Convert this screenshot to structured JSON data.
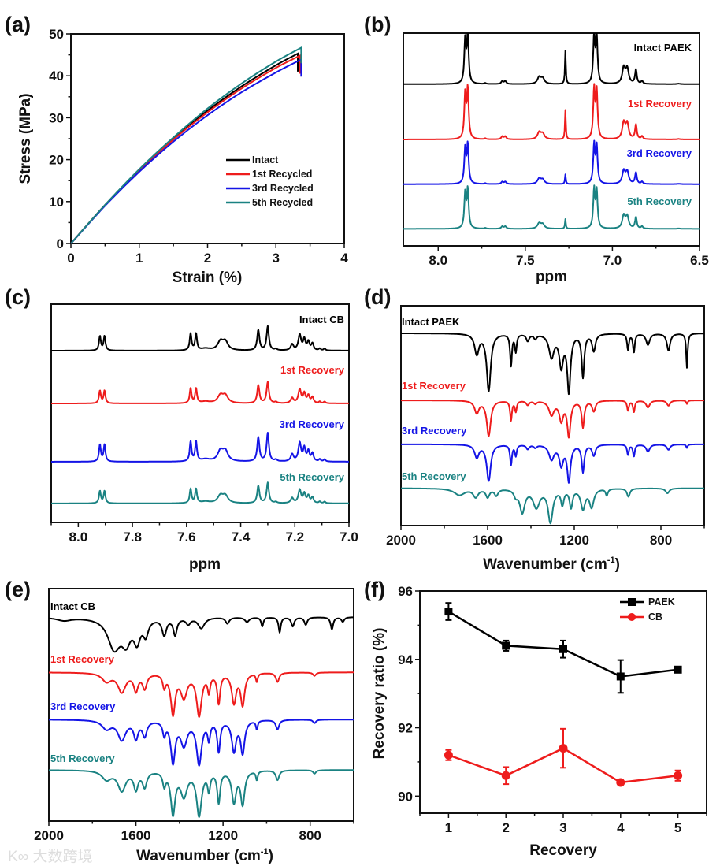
{
  "colors": {
    "black": "#000000",
    "red": "#ee1c1c",
    "blue": "#1414e6",
    "teal": "#1a8282"
  },
  "watermark": "大数跨境",
  "chart_data": [
    {
      "panel": "(a)",
      "type": "line",
      "xlabel": "Strain (%)",
      "ylabel": "Stress (MPa)",
      "xlim": [
        0,
        4
      ],
      "ylim": [
        0,
        50
      ],
      "xticks": [
        "0",
        "1",
        "2",
        "3",
        "4"
      ],
      "xtick_values": [
        0,
        1,
        2,
        3,
        4
      ],
      "yticks": [
        "0",
        "10",
        "20",
        "30",
        "40",
        "50"
      ],
      "ytick_values": [
        0,
        10,
        20,
        30,
        40,
        50
      ],
      "legend_position": "bottom-right",
      "series": [
        {
          "name": "Intact",
          "color": "#000000",
          "x": [
            0,
            0.5,
            1,
            1.5,
            2,
            2.5,
            3,
            3.32,
            3.32
          ],
          "y": [
            0,
            9.2,
            17.5,
            25.0,
            31.7,
            37.5,
            42.5,
            45.3,
            41.0
          ]
        },
        {
          "name": "1st Recycled",
          "color": "#ee1c1c",
          "x": [
            0,
            0.5,
            1,
            1.5,
            2,
            2.5,
            3,
            3.35,
            3.35
          ],
          "y": [
            0,
            9.1,
            17.4,
            24.8,
            31.3,
            37.0,
            41.9,
            44.8,
            40.5
          ]
        },
        {
          "name": "3rd Recycled",
          "color": "#1414e6",
          "x": [
            0,
            0.5,
            1,
            1.5,
            2,
            2.5,
            3,
            3.37,
            3.37
          ],
          "y": [
            0,
            9.0,
            17.1,
            24.3,
            30.6,
            36.1,
            40.8,
            43.9,
            39.8
          ]
        },
        {
          "name": "5th Recycled",
          "color": "#1a8282",
          "x": [
            0,
            0.5,
            1,
            1.5,
            2,
            2.5,
            3,
            3.37,
            3.37
          ],
          "y": [
            0,
            9.2,
            17.7,
            25.3,
            32.2,
            38.2,
            43.4,
            46.7,
            43.0
          ]
        }
      ]
    },
    {
      "panel": "(b)",
      "type": "line",
      "subtype": "1H NMR stacked",
      "xlabel": "ppm",
      "ylabel": "",
      "xlim": [
        8.2,
        6.5
      ],
      "ylim": [
        0,
        100
      ],
      "xticks": [
        "8.0",
        "7.5",
        "7.0",
        "6.5"
      ],
      "xtick_values": [
        8.0,
        7.5,
        7.0,
        6.5
      ],
      "peaks": [
        [
          7.845,
          0.9,
          0.006
        ],
        [
          7.83,
          1.0,
          0.006
        ],
        [
          7.73,
          0.02,
          0.006
        ],
        [
          7.632,
          0.06,
          0.007
        ],
        [
          7.615,
          0.06,
          0.007
        ],
        [
          7.42,
          0.14,
          0.012
        ],
        [
          7.4,
          0.11,
          0.012
        ],
        [
          7.27,
          0.7,
          0.003
        ],
        [
          7.105,
          1.0,
          0.006
        ],
        [
          7.09,
          0.95,
          0.006
        ],
        [
          6.935,
          0.33,
          0.01
        ],
        [
          6.915,
          0.31,
          0.01
        ],
        [
          6.865,
          0.3,
          0.006
        ],
        [
          6.83,
          0.06,
          0.006
        ],
        [
          6.62,
          0.01,
          0.01
        ]
      ],
      "series": [
        {
          "name": "Intact PAEK",
          "color": "#000000",
          "offset": 76,
          "scale": 22.5,
          "peak_overrides": {}
        },
        {
          "name": "1st Recovery",
          "color": "#ee1c1c",
          "offset": 50,
          "scale": 23,
          "peak_overrides": {
            "7.27": 0.6
          }
        },
        {
          "name": "3rd Recovery",
          "color": "#1414e6",
          "offset": 29,
          "scale": 18,
          "peak_overrides": {
            "7.27": 0.25
          }
        },
        {
          "name": "5th Recovery",
          "color": "#1a8282",
          "offset": 8,
          "scale": 18,
          "peak_overrides": {
            "7.27": 0.25
          }
        }
      ]
    },
    {
      "panel": "(c)",
      "type": "line",
      "subtype": "1H NMR stacked",
      "xlabel": "ppm",
      "ylabel": "",
      "xlim": [
        8.1,
        7.0
      ],
      "ylim": [
        0,
        100
      ],
      "xticks": [
        "8.0",
        "7.8",
        "7.6",
        "7.4",
        "7.2",
        "7.0"
      ],
      "xtick_values": [
        8.0,
        7.8,
        7.6,
        7.4,
        7.2,
        7.0
      ],
      "peaks": [
        [
          7.92,
          0.6,
          0.004
        ],
        [
          7.903,
          0.6,
          0.004
        ],
        [
          7.585,
          0.7,
          0.004
        ],
        [
          7.565,
          0.7,
          0.004
        ],
        [
          7.53,
          0.08,
          0.02
        ],
        [
          7.475,
          0.35,
          0.012
        ],
        [
          7.457,
          0.35,
          0.012
        ],
        [
          7.335,
          0.85,
          0.005
        ],
        [
          7.3,
          1.0,
          0.005
        ],
        [
          7.27,
          0.06,
          0.005
        ],
        [
          7.21,
          0.25,
          0.006
        ],
        [
          7.182,
          0.65,
          0.006
        ],
        [
          7.165,
          0.45,
          0.005
        ],
        [
          7.15,
          0.35,
          0.005
        ],
        [
          7.135,
          0.28,
          0.005
        ],
        [
          7.108,
          0.08,
          0.004
        ],
        [
          7.09,
          0.08,
          0.004
        ]
      ],
      "series": [
        {
          "name": "Intact CB",
          "color": "#000000",
          "offset": 78.7,
          "scale": 11,
          "peak_overrides": {}
        },
        {
          "name": "1st Recovery",
          "color": "#ee1c1c",
          "offset": 54.5,
          "scale": 9.7,
          "peak_overrides": {}
        },
        {
          "name": "3rd Recovery",
          "color": "#1414e6",
          "offset": 27.8,
          "scale": 13,
          "peak_overrides": {}
        },
        {
          "name": "5th Recovery",
          "color": "#1a8282",
          "offset": 8.7,
          "scale": 9.4,
          "peak_overrides": {}
        }
      ]
    },
    {
      "panel": "(d)",
      "type": "line",
      "subtype": "FTIR transmittance stacked",
      "xlabel": "Wavenumber (cm",
      "xlabel_sup": "-1",
      "xlabel_end": ")",
      "ylabel": "",
      "xlim": [
        2000,
        600
      ],
      "ylim": [
        0,
        100
      ],
      "xticks": [
        "2000",
        "1600",
        "1200",
        "800"
      ],
      "xtick_values": [
        2000,
        1600,
        1200,
        800
      ],
      "peaks": [
        [
          1650,
          0.35,
          12
        ],
        [
          1595,
          1.0,
          11
        ],
        [
          1492,
          0.55,
          5
        ],
        [
          1470,
          0.3,
          5
        ],
        [
          1415,
          0.12,
          8
        ],
        [
          1380,
          0.08,
          8
        ],
        [
          1305,
          0.4,
          14
        ],
        [
          1260,
          0.55,
          11
        ],
        [
          1225,
          1.0,
          9
        ],
        [
          1160,
          0.75,
          7
        ],
        [
          1110,
          0.3,
          9
        ],
        [
          952,
          0.28,
          5
        ],
        [
          925,
          0.33,
          5
        ],
        [
          860,
          0.2,
          10
        ],
        [
          765,
          0.3,
          9
        ],
        [
          680,
          0.6,
          4
        ]
      ],
      "series": [
        {
          "name": "Intact PAEK",
          "color": "#000000",
          "offset": 87.5,
          "scale": 26,
          "peak_overrides": {}
        },
        {
          "name": "1st Recovery",
          "color": "#ee1c1c",
          "offset": 57,
          "scale": 16,
          "peak_overrides": {
            "680": 0.1,
            "765": 0.15
          }
        },
        {
          "name": "3rd Recovery",
          "color": "#1414e6",
          "offset": 37,
          "scale": 16.5,
          "peak_overrides": {
            "680": 0.1,
            "765": 0.15
          }
        },
        {
          "name": "5th Recovery",
          "color": "#1a8282",
          "offset": 17,
          "scale": 15,
          "peaks": [
            [
              1730,
              0.2,
              30
            ],
            [
              1655,
              0.25,
              14
            ],
            [
              1600,
              0.25,
              10
            ],
            [
              1560,
              0.2,
              10
            ],
            [
              1470,
              0.18,
              10
            ],
            [
              1440,
              0.7,
              14
            ],
            [
              1375,
              0.55,
              18
            ],
            [
              1310,
              1.0,
              13
            ],
            [
              1255,
              0.45,
              8
            ],
            [
              1215,
              0.55,
              8
            ],
            [
              1160,
              0.6,
              12
            ],
            [
              1120,
              0.55,
              12
            ],
            [
              1050,
              0.2,
              6
            ],
            [
              950,
              0.25,
              8
            ],
            [
              770,
              0.15,
              10
            ]
          ]
        }
      ]
    },
    {
      "panel": "(e)",
      "type": "line",
      "subtype": "FTIR transmittance stacked",
      "xlabel": "Wavenumber (cm",
      "xlabel_sup": "-1",
      "xlabel_end": ")",
      "ylabel": "",
      "xlim": [
        2000,
        600
      ],
      "ylim": [
        0,
        100
      ],
      "xticks": [
        "2000",
        "1600",
        "1200",
        "800"
      ],
      "xtick_values": [
        2000,
        1600,
        1200,
        800
      ],
      "peaks": [
        [
          1735,
          0.2,
          25
        ],
        [
          1665,
          0.45,
          22
        ],
        [
          1600,
          0.4,
          12
        ],
        [
          1560,
          0.35,
          12
        ],
        [
          1470,
          0.3,
          8
        ],
        [
          1430,
          0.95,
          12
        ],
        [
          1380,
          0.55,
          18
        ],
        [
          1310,
          1.0,
          14
        ],
        [
          1265,
          0.4,
          7
        ],
        [
          1220,
          0.7,
          8
        ],
        [
          1150,
          0.7,
          12
        ],
        [
          1110,
          0.75,
          11
        ],
        [
          1045,
          0.2,
          5
        ],
        [
          950,
          0.22,
          9
        ],
        [
          780,
          0.08,
          8
        ]
      ],
      "series": [
        {
          "name": "Intact CB",
          "color": "#000000",
          "offset": 87.8,
          "scale": 13,
          "peaks": [
            [
              1930,
              0.1,
              40
            ],
            [
              1700,
              1.0,
              35
            ],
            [
              1645,
              0.7,
              25
            ],
            [
              1595,
              0.7,
              18
            ],
            [
              1555,
              0.5,
              14
            ],
            [
              1470,
              0.55,
              12
            ],
            [
              1420,
              0.55,
              10
            ],
            [
              1360,
              0.2,
              12
            ],
            [
              1300,
              0.35,
              18
            ],
            [
              1180,
              0.2,
              10
            ],
            [
              1090,
              0.15,
              12
            ],
            [
              1020,
              0.3,
              6
            ],
            [
              940,
              0.5,
              6
            ],
            [
              880,
              0.3,
              8
            ],
            [
              820,
              0.25,
              8
            ],
            [
              700,
              0.4,
              7
            ],
            [
              650,
              0.15,
              8
            ]
          ]
        },
        {
          "name": "1st Recovery",
          "color": "#ee1c1c",
          "offset": 64,
          "scale": 18
        },
        {
          "name": "3rd Recovery",
          "color": "#1414e6",
          "offset": 43.7,
          "scale": 18.6
        },
        {
          "name": "5th Recovery",
          "color": "#1a8282",
          "offset": 22,
          "scale": 19
        }
      ]
    },
    {
      "panel": "(f)",
      "type": "line",
      "subtype": "line with error bars",
      "xlabel": "Recovery",
      "ylabel": "Recovery ratio (%)",
      "xlim": [
        0.5,
        5.5
      ],
      "ylim": [
        89.5,
        96
      ],
      "xticks": [
        "1",
        "2",
        "3",
        "4",
        "5"
      ],
      "xtick_values": [
        1,
        2,
        3,
        4,
        5
      ],
      "yticks": [
        "90",
        "92",
        "94",
        "96"
      ],
      "ytick_values": [
        90,
        92,
        94,
        96
      ],
      "legend_position": "top-right",
      "series": [
        {
          "name": "PAEK",
          "color": "#000000",
          "marker": "square",
          "x": [
            1,
            2,
            3,
            4,
            5
          ],
          "y": [
            95.4,
            94.4,
            94.3,
            93.5,
            93.7
          ],
          "err": [
            0.25,
            0.15,
            0.25,
            0.48,
            0.07
          ]
        },
        {
          "name": "CB",
          "color": "#ee1c1c",
          "marker": "circle",
          "x": [
            1,
            2,
            3,
            4,
            5
          ],
          "y": [
            91.2,
            90.6,
            91.4,
            90.4,
            90.6
          ],
          "err": [
            0.15,
            0.25,
            0.57,
            0.06,
            0.15
          ]
        }
      ]
    }
  ]
}
